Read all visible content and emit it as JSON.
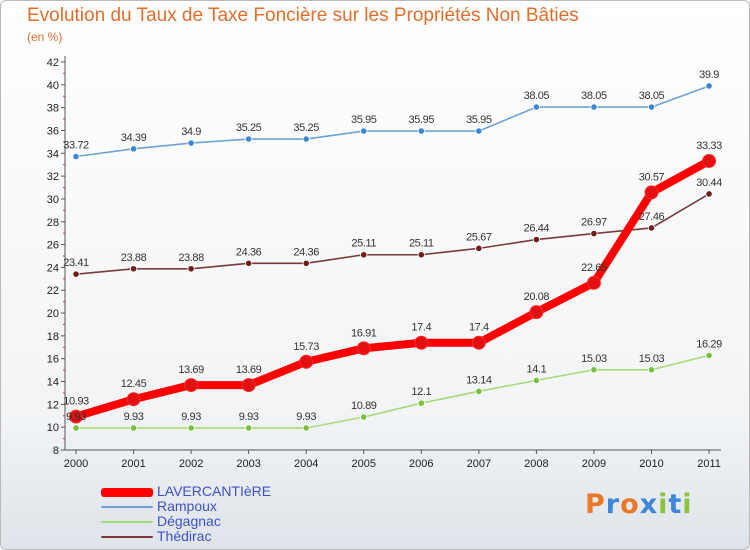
{
  "title": "Evolution du Taux de Taxe Foncière sur les Propriétés Non Bâties",
  "unit": "(en %)",
  "logo": {
    "text": "Proxiti",
    "letters": [
      {
        "ch": "P",
        "color": "#e8792b"
      },
      {
        "ch": "r",
        "color": "#3e86d8"
      },
      {
        "ch": "o",
        "color": "#e8792b"
      },
      {
        "ch": "x",
        "color": "#3e86d8"
      },
      {
        "ch": "i",
        "color": "#8cc43c"
      },
      {
        "ch": "t",
        "color": "#3e86d8"
      },
      {
        "ch": "i",
        "color": "#8cc43c"
      }
    ]
  },
  "chart_data": {
    "type": "line",
    "title": "Evolution du Taux de Taxe Foncière sur les Propriétés Non Bâties",
    "ylabel": "(en %)",
    "xlabel": "",
    "x": [
      "2000",
      "2001",
      "2002",
      "2003",
      "2004",
      "2005",
      "2006",
      "2007",
      "2008",
      "2009",
      "2010",
      "2011"
    ],
    "ylim": [
      8,
      42
    ],
    "yticks": [
      8,
      10,
      12,
      14,
      16,
      18,
      20,
      22,
      24,
      26,
      28,
      30,
      32,
      34,
      36,
      38,
      40,
      42
    ],
    "grid": false,
    "legend_position": "bottom-left",
    "series": [
      {
        "name": "LAVERCANTIèRE",
        "color": "#ff0000",
        "point_color": "#e21010",
        "highlight": true,
        "values": [
          10.93,
          12.45,
          13.69,
          13.69,
          15.73,
          16.91,
          17.4,
          17.4,
          20.08,
          22.65,
          30.57,
          33.33
        ],
        "labels": [
          "10.93",
          "12.45",
          "13.69",
          "13.69",
          "15.73",
          "16.91",
          "17.4",
          "17.4",
          "20.08",
          "22.65",
          "30.57",
          "33.33"
        ]
      },
      {
        "name": "Rampoux",
        "color": "#6fa2d6",
        "point_color": "#3e86d0",
        "values": [
          33.72,
          34.39,
          34.9,
          35.25,
          35.25,
          35.95,
          35.95,
          35.95,
          38.05,
          38.05,
          38.05,
          39.9
        ],
        "labels": [
          "33.72",
          "34.39",
          "34.9",
          "35.25",
          "35.25",
          "35.95",
          "35.95",
          "35.95",
          "38.05",
          "38.05",
          "38.05",
          "39.9"
        ]
      },
      {
        "name": "Dégagnac",
        "color": "#a6db79",
        "point_color": "#78c140",
        "values": [
          9.93,
          9.93,
          9.93,
          9.93,
          9.93,
          10.89,
          12.1,
          13.14,
          14.1,
          15.03,
          15.03,
          16.29
        ],
        "labels": [
          "9.93",
          "9.93",
          "9.93",
          "9.93",
          "9.93",
          "10.89",
          "12.1",
          "13.14",
          "14.1",
          "15.03",
          "15.03",
          "16.29"
        ]
      },
      {
        "name": "Thédirac",
        "color": "#7a3a3a",
        "point_color": "#6e1c1c",
        "values": [
          23.41,
          23.88,
          23.88,
          24.36,
          24.36,
          25.11,
          25.11,
          25.67,
          26.44,
          26.97,
          27.46,
          30.44
        ],
        "labels": [
          "23.41",
          "23.88",
          "23.88",
          "24.36",
          "24.36",
          "25.11",
          "25.11",
          "25.67",
          "26.44",
          "26.97",
          "27.46",
          "30.44"
        ]
      }
    ]
  }
}
